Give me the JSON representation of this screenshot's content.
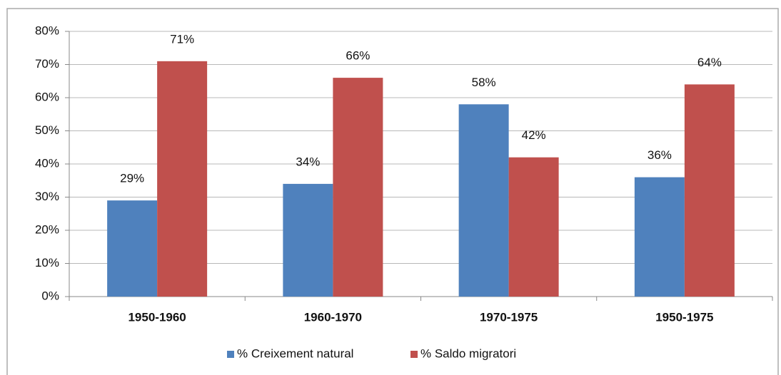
{
  "chart_data": {
    "type": "bar",
    "categories": [
      "1950-1960",
      "1960-1970",
      "1970-1975",
      "1950-1975"
    ],
    "series": [
      {
        "name": "% Creixement natural",
        "color": "#4f81bd",
        "values": [
          29,
          34,
          58,
          36
        ],
        "value_labels": [
          "29%",
          "34%",
          "58%",
          "36%"
        ]
      },
      {
        "name": "% Saldo migratori",
        "color": "#c0504d",
        "values": [
          71,
          66,
          42,
          64
        ],
        "value_labels": [
          "71%",
          "66%",
          "42%",
          "64%"
        ]
      }
    ],
    "ylim": [
      0,
      80
    ],
    "yticks": [
      {
        "value": 0,
        "label": "0%"
      },
      {
        "value": 10,
        "label": "10%"
      },
      {
        "value": 20,
        "label": "20%"
      },
      {
        "value": 30,
        "label": "30%"
      },
      {
        "value": 40,
        "label": "40%"
      },
      {
        "value": 50,
        "label": "50%"
      },
      {
        "value": 60,
        "label": "60%"
      },
      {
        "value": 70,
        "label": "70%"
      },
      {
        "value": 80,
        "label": "80%"
      }
    ],
    "grid": true,
    "legend": "bottom"
  }
}
